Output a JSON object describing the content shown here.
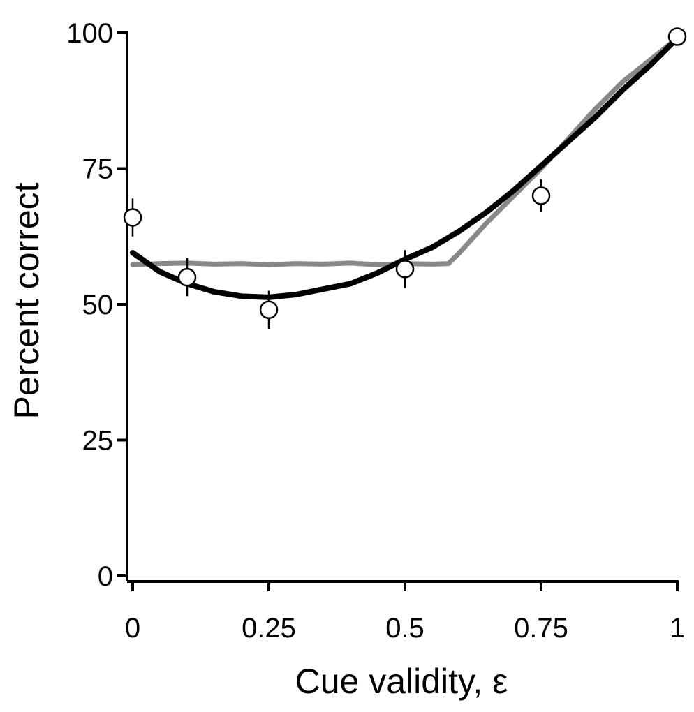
{
  "chart_data": {
    "type": "line",
    "xlabel": "Cue validity, ε",
    "ylabel": "Percent correct",
    "xlim": [
      0,
      1
    ],
    "ylim": [
      0,
      100
    ],
    "x_ticks": [
      0,
      0.25,
      0.5,
      0.75,
      1
    ],
    "x_tick_labels": [
      "0",
      "0.25",
      "0.5",
      "0.75",
      "1"
    ],
    "y_ticks": [
      0,
      25,
      50,
      75,
      100
    ],
    "y_tick_labels": [
      "0",
      "25",
      "50",
      "75",
      "100"
    ],
    "grid": false,
    "series": [
      {
        "type": "line",
        "color": "#888888",
        "x": [
          0,
          0.05,
          0.1,
          0.15,
          0.2,
          0.25,
          0.3,
          0.35,
          0.4,
          0.45,
          0.5,
          0.55,
          0.58,
          0.6,
          0.65,
          0.7,
          0.75,
          0.8,
          0.85,
          0.9,
          0.95,
          1.0
        ],
        "y": [
          57.3,
          57.5,
          57.6,
          57.4,
          57.5,
          57.3,
          57.5,
          57.4,
          57.6,
          57.3,
          57.5,
          57.4,
          57.5,
          59.5,
          65.0,
          70.0,
          75.0,
          80.5,
          86.0,
          91.0,
          95.0,
          99.0
        ]
      },
      {
        "type": "line",
        "color": "#000000",
        "x": [
          0,
          0.05,
          0.1,
          0.15,
          0.2,
          0.25,
          0.3,
          0.35,
          0.4,
          0.45,
          0.5,
          0.55,
          0.6,
          0.65,
          0.7,
          0.75,
          0.8,
          0.85,
          0.9,
          0.95,
          1.0
        ],
        "y": [
          59.5,
          56.0,
          53.8,
          52.3,
          51.5,
          51.3,
          51.8,
          52.8,
          53.8,
          55.8,
          58.3,
          60.5,
          63.5,
          67.0,
          71.0,
          75.5,
          80.0,
          84.5,
          89.5,
          94.0,
          99.0
        ]
      },
      {
        "type": "scatter",
        "marker": "open-circle",
        "x": [
          0,
          0.1,
          0.25,
          0.5,
          0.75,
          1.0
        ],
        "y": [
          66,
          55,
          49,
          56.5,
          70,
          99.3
        ],
        "error": [
          3.5,
          3.5,
          3.5,
          3.5,
          3.0,
          0
        ]
      }
    ]
  }
}
